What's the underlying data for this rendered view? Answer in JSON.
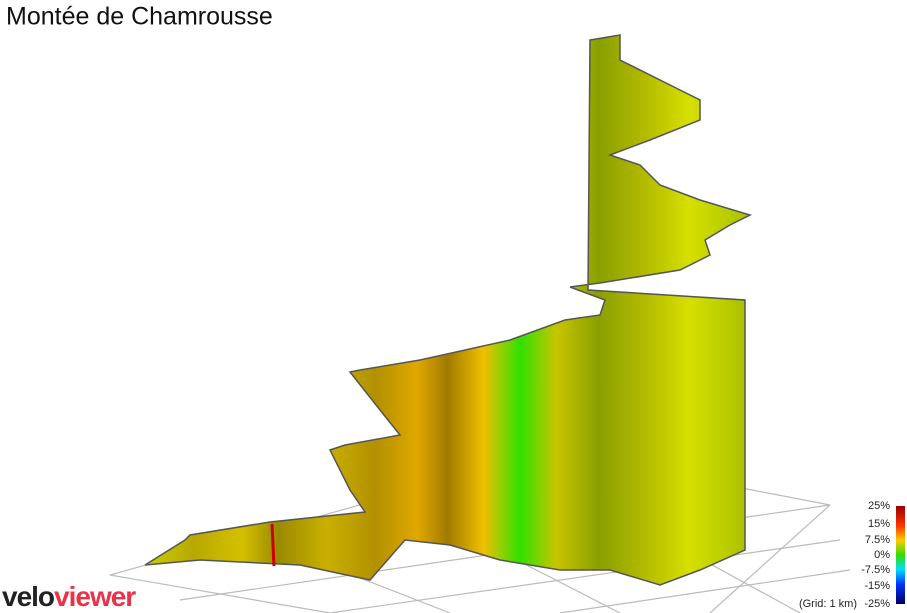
{
  "title": "Montée de Chamrousse",
  "color_scale": {
    "labels": [
      "25%",
      "15%",
      "7.5%",
      "0%",
      "-7.5%",
      "-15%",
      "-25%"
    ]
  },
  "grid_note": "(Grid: 1 km)",
  "logo": {
    "part1": "velo",
    "part2": "viewer"
  }
}
